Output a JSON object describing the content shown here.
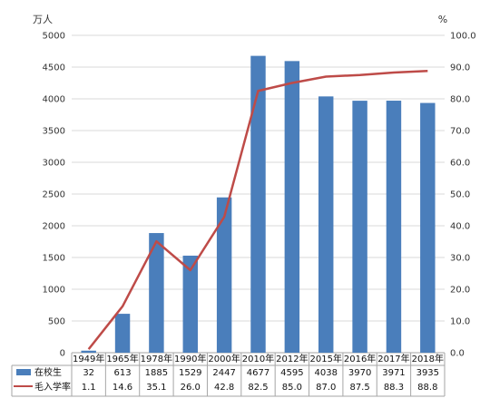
{
  "chart_data": {
    "type": "bar",
    "left_unit": "万人",
    "right_unit": "%",
    "categories": [
      "1949年",
      "1965年",
      "1978年",
      "1990年",
      "2000年",
      "2010年",
      "2012年",
      "2015年",
      "2016年",
      "2017年",
      "2018年"
    ],
    "series": [
      {
        "name": "在校生",
        "type": "bar",
        "axis": "left",
        "values": [
          32,
          613,
          1885,
          1529,
          2447,
          4677,
          4595,
          4038,
          3970,
          3971,
          3935
        ],
        "labels": [
          "32",
          "613",
          "1885",
          "1529",
          "2447",
          "4677",
          "4595",
          "4038",
          "3970",
          "3971",
          "3935"
        ]
      },
      {
        "name": "毛入学率",
        "type": "line",
        "axis": "right",
        "values": [
          1.1,
          14.6,
          35.1,
          26.0,
          42.8,
          82.5,
          85.0,
          87.0,
          87.5,
          88.3,
          88.8
        ],
        "labels": [
          "1.1",
          "14.6",
          "35.1",
          "26.0",
          "42.8",
          "82.5",
          "85.0",
          "87.0",
          "87.5",
          "88.3",
          "88.8"
        ]
      }
    ],
    "left_axis": {
      "min": 0,
      "max": 5000,
      "step": 500,
      "tick_labels": [
        "0",
        "500",
        "1000",
        "1500",
        "2000",
        "2500",
        "3000",
        "3500",
        "4000",
        "4500",
        "5000"
      ]
    },
    "right_axis": {
      "min": 0,
      "max": 100,
      "step": 10,
      "tick_labels": [
        "0.0",
        "10.0",
        "20.0",
        "30.0",
        "40.0",
        "50.0",
        "60.0",
        "70.0",
        "80.0",
        "90.0",
        "100.0"
      ]
    },
    "grid": true,
    "legend": "data-table",
    "colors": {
      "bar": "#4a7ebb",
      "line": "#be4b48",
      "grid": "#d9d9d9",
      "table": "#a6a6a6"
    }
  }
}
